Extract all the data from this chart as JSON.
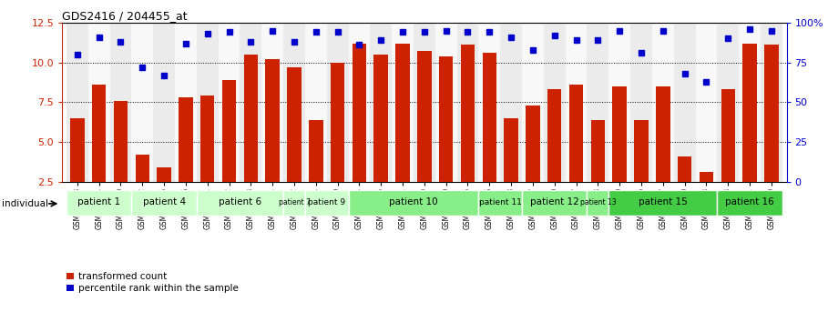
{
  "title": "GDS2416 / 204455_at",
  "samples": [
    "GSM135233",
    "GSM135234",
    "GSM135260",
    "GSM135232",
    "GSM135235",
    "GSM135236",
    "GSM135231",
    "GSM135242",
    "GSM135243",
    "GSM135251",
    "GSM135252",
    "GSM135244",
    "GSM135259",
    "GSM135254",
    "GSM135255",
    "GSM135261",
    "GSM135229",
    "GSM135230",
    "GSM135245",
    "GSM135246",
    "GSM135258",
    "GSM135247",
    "GSM135250",
    "GSM135237",
    "GSM135238",
    "GSM135239",
    "GSM135256",
    "GSM135257",
    "GSM135240",
    "GSM135248",
    "GSM135253",
    "GSM135241",
    "GSM135249"
  ],
  "bar_values": [
    6.5,
    8.6,
    7.6,
    4.2,
    3.4,
    7.8,
    7.9,
    8.9,
    10.5,
    10.2,
    9.7,
    6.4,
    10.0,
    11.2,
    10.5,
    11.2,
    10.7,
    10.4,
    11.1,
    10.6,
    6.5,
    7.3,
    8.3,
    8.6,
    6.4,
    8.5,
    6.4,
    8.5,
    4.1,
    3.1,
    8.3,
    11.2,
    11.1
  ],
  "dot_values_pct": [
    80,
    91,
    88,
    72,
    67,
    87,
    93,
    94,
    88,
    95,
    88,
    94,
    94,
    86,
    89,
    94,
    94,
    95,
    94,
    94,
    91,
    83,
    92,
    89,
    89,
    95,
    81,
    95,
    68,
    63,
    90,
    96,
    95
  ],
  "ylim_left": [
    2.5,
    12.5
  ],
  "ylim_right": [
    0,
    100
  ],
  "yticks_left": [
    2.5,
    5.0,
    7.5,
    10.0,
    12.5
  ],
  "yticks_right": [
    0,
    25,
    50,
    75,
    100
  ],
  "bar_color": "#cc2200",
  "dot_color": "#0000cc",
  "patients": [
    {
      "label": "patient 1",
      "start": 0,
      "end": 2,
      "color": "#ccffcc"
    },
    {
      "label": "patient 4",
      "start": 3,
      "end": 5,
      "color": "#ccffcc"
    },
    {
      "label": "patient 6",
      "start": 6,
      "end": 9,
      "color": "#ccffcc"
    },
    {
      "label": "patient 7",
      "start": 10,
      "end": 10,
      "color": "#ccffcc"
    },
    {
      "label": "patient 9",
      "start": 11,
      "end": 12,
      "color": "#ccffcc"
    },
    {
      "label": "patient 10",
      "start": 13,
      "end": 18,
      "color": "#88ee88"
    },
    {
      "label": "patient 11",
      "start": 19,
      "end": 20,
      "color": "#88ee88"
    },
    {
      "label": "patient 12",
      "start": 21,
      "end": 23,
      "color": "#88ee88"
    },
    {
      "label": "patient 13",
      "start": 24,
      "end": 24,
      "color": "#88ee88"
    },
    {
      "label": "patient 15",
      "start": 25,
      "end": 29,
      "color": "#44cc44"
    },
    {
      "label": "patient 16",
      "start": 30,
      "end": 32,
      "color": "#44cc44"
    }
  ],
  "tick_color_left": "#cc2200",
  "tick_color_right": "#0000cc"
}
